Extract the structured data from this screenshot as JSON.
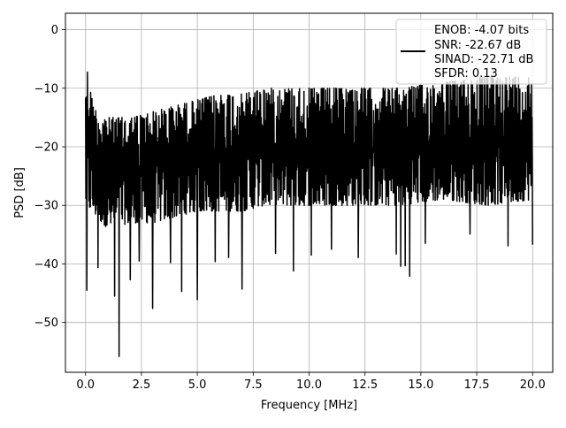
{
  "chart_data": {
    "type": "line",
    "title": "",
    "xlabel": "Frequency [MHz]",
    "ylabel": "PSD [dB]",
    "xlim": [
      -0.9,
      20.9
    ],
    "ylim": [
      -58.5,
      2.8
    ],
    "xticks": [
      0.0,
      2.5,
      5.0,
      7.5,
      10.0,
      12.5,
      15.0,
      17.5,
      20.0
    ],
    "xtick_labels": [
      "0.0",
      "2.5",
      "5.0",
      "7.5",
      "10.0",
      "12.5",
      "15.0",
      "17.5",
      "20.0"
    ],
    "yticks": [
      0,
      -10,
      -20,
      -30,
      -40,
      -50
    ],
    "ytick_labels": [
      "0",
      "−10",
      "−20",
      "−30",
      "−40",
      "−50"
    ],
    "grid": true,
    "legend_position": "top-right",
    "line_color": "#000000",
    "series": [
      {
        "name": "ENOB: -4.07 bits\nSNR: -22.67 dB\nSINAD: -22.71 dB\nSFDR: 0.13",
        "legend_lines": [
          "ENOB: -4.07 bits",
          "SNR: -22.67 dB",
          "SINAD: -22.71 dB",
          "SFDR: 0.13"
        ],
        "description": "dense noisy spectrum; upper envelope and lower envelope shown below, with deep notches at listed points",
        "upper_envelope": [
          {
            "x": 0.0,
            "y": -6
          },
          {
            "x": 0.1,
            "y": -7
          },
          {
            "x": 0.3,
            "y": -12
          },
          {
            "x": 0.5,
            "y": -14
          },
          {
            "x": 1.0,
            "y": -15
          },
          {
            "x": 2.0,
            "y": -15
          },
          {
            "x": 3.0,
            "y": -14
          },
          {
            "x": 4.0,
            "y": -13
          },
          {
            "x": 5.0,
            "y": -12
          },
          {
            "x": 6.0,
            "y": -11
          },
          {
            "x": 7.0,
            "y": -11
          },
          {
            "x": 8.0,
            "y": -10
          },
          {
            "x": 10.0,
            "y": -10
          },
          {
            "x": 12.0,
            "y": -10
          },
          {
            "x": 14.0,
            "y": -10
          },
          {
            "x": 16.0,
            "y": -9
          },
          {
            "x": 18.0,
            "y": -8
          },
          {
            "x": 20.0,
            "y": -8
          }
        ],
        "lower_envelope": [
          {
            "x": 0.0,
            "y": -30
          },
          {
            "x": 1.0,
            "y": -34
          },
          {
            "x": 2.0,
            "y": -33
          },
          {
            "x": 3.0,
            "y": -33
          },
          {
            "x": 4.0,
            "y": -32
          },
          {
            "x": 5.0,
            "y": -31
          },
          {
            "x": 6.0,
            "y": -31
          },
          {
            "x": 7.0,
            "y": -31
          },
          {
            "x": 8.0,
            "y": -30
          },
          {
            "x": 10.0,
            "y": -30
          },
          {
            "x": 12.0,
            "y": -30
          },
          {
            "x": 14.0,
            "y": -30
          },
          {
            "x": 16.0,
            "y": -29
          },
          {
            "x": 18.0,
            "y": -30
          },
          {
            "x": 20.0,
            "y": -29
          }
        ],
        "notches": [
          {
            "x": 0.05,
            "y": -44.5
          },
          {
            "x": 0.55,
            "y": -40.6
          },
          {
            "x": 1.3,
            "y": -45.5
          },
          {
            "x": 1.5,
            "y": -55.8
          },
          {
            "x": 2.0,
            "y": -42.7
          },
          {
            "x": 2.4,
            "y": -39.5
          },
          {
            "x": 3.0,
            "y": -47.6
          },
          {
            "x": 3.8,
            "y": -39.8
          },
          {
            "x": 4.3,
            "y": -44.7
          },
          {
            "x": 5.0,
            "y": -46.1
          },
          {
            "x": 5.8,
            "y": -39.6
          },
          {
            "x": 6.4,
            "y": -38.9
          },
          {
            "x": 7.0,
            "y": -44.3
          },
          {
            "x": 8.5,
            "y": -38.2
          },
          {
            "x": 9.3,
            "y": -41.2
          },
          {
            "x": 10.1,
            "y": -38.5
          },
          {
            "x": 11.0,
            "y": -37.5
          },
          {
            "x": 12.2,
            "y": -38.9
          },
          {
            "x": 13.9,
            "y": -38.3
          },
          {
            "x": 14.1,
            "y": -40.4
          },
          {
            "x": 14.3,
            "y": -40.3
          },
          {
            "x": 14.5,
            "y": -42.1
          },
          {
            "x": 15.2,
            "y": -36.5
          },
          {
            "x": 17.2,
            "y": -34.9
          },
          {
            "x": 18.9,
            "y": -36.9
          },
          {
            "x": 20.0,
            "y": -36.7
          }
        ]
      }
    ]
  }
}
